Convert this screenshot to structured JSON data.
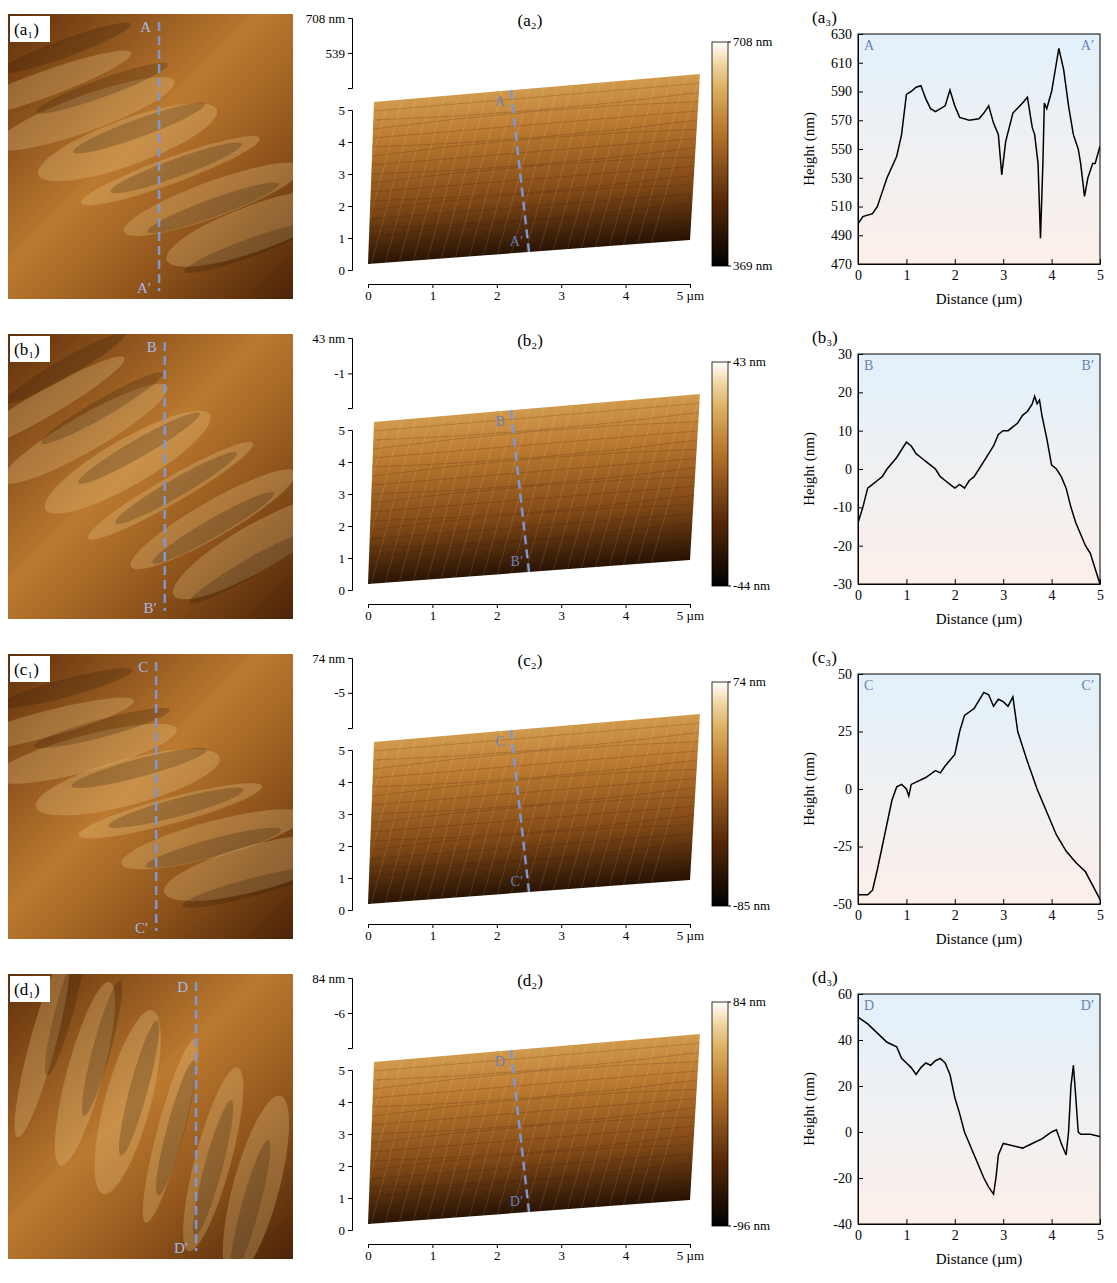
{
  "chart_data": [
    {
      "type": "line",
      "title": "(a₃)",
      "x_label": "Distance (µm)",
      "y_label": "Height (nm)",
      "annotations": [
        "A",
        "A′"
      ],
      "color": "#000000",
      "xlim": [
        0,
        5
      ],
      "xticks": [
        0,
        1,
        2,
        3,
        4,
        5
      ],
      "ylim": [
        470,
        630
      ],
      "yticks": [
        470,
        490,
        510,
        530,
        550,
        570,
        590,
        610,
        630
      ],
      "x": [
        0,
        0.1,
        0.3,
        0.4,
        0.5,
        0.6,
        0.8,
        0.9,
        1.0,
        1.1,
        1.2,
        1.3,
        1.4,
        1.5,
        1.6,
        1.8,
        1.9,
        2.0,
        2.1,
        2.3,
        2.5,
        2.6,
        2.7,
        2.8,
        2.9,
        2.97,
        3.05,
        3.2,
        3.4,
        3.5,
        3.6,
        3.65,
        3.72,
        3.77,
        3.82,
        3.85,
        3.9,
        4.0,
        4.1,
        4.15,
        4.25,
        4.35,
        4.45,
        4.55,
        4.6,
        4.68,
        4.75,
        4.85,
        4.9,
        5.0
      ],
      "values": [
        498,
        503,
        505,
        510,
        520,
        530,
        545,
        560,
        588,
        590,
        593,
        594,
        585,
        578,
        576,
        580,
        591,
        580,
        572,
        570,
        571,
        575,
        580,
        568,
        560,
        532,
        555,
        575,
        582,
        586,
        565,
        560,
        540,
        488,
        540,
        582,
        578,
        590,
        610,
        620,
        605,
        580,
        560,
        550,
        540,
        517,
        530,
        540,
        540,
        552
      ]
    },
    {
      "type": "line",
      "title": "(b₃)",
      "x_label": "Distance (µm)",
      "y_label": "Height (nm)",
      "annotations": [
        "B",
        "B′"
      ],
      "color": "#000000",
      "xlim": [
        0,
        5
      ],
      "xticks": [
        0,
        1,
        2,
        3,
        4,
        5
      ],
      "ylim": [
        -30,
        30
      ],
      "yticks": [
        -30,
        -20,
        -10,
        0,
        10,
        20,
        30
      ],
      "x": [
        0,
        0.1,
        0.2,
        0.3,
        0.4,
        0.5,
        0.6,
        0.8,
        1.0,
        1.1,
        1.2,
        1.3,
        1.4,
        1.5,
        1.6,
        1.7,
        1.8,
        1.9,
        2.0,
        2.1,
        2.2,
        2.3,
        2.4,
        2.5,
        2.6,
        2.7,
        2.8,
        2.9,
        3.0,
        3.1,
        3.2,
        3.3,
        3.4,
        3.5,
        3.6,
        3.65,
        3.7,
        3.75,
        3.8,
        3.9,
        4.0,
        4.1,
        4.2,
        4.3,
        4.4,
        4.5,
        4.6,
        4.7,
        4.8,
        4.9,
        5.0
      ],
      "values": [
        -14,
        -10,
        -5,
        -4,
        -3,
        -2,
        0,
        3,
        7,
        6,
        4,
        3,
        2,
        1,
        0,
        -2,
        -3,
        -4,
        -5,
        -4,
        -5,
        -3,
        -2,
        0,
        2,
        4,
        6,
        9,
        10,
        10,
        11,
        12,
        14,
        15,
        17,
        19,
        17,
        18,
        14,
        8,
        1,
        0,
        -2,
        -5,
        -10,
        -14,
        -17,
        -20,
        -22,
        -26,
        -30
      ]
    },
    {
      "type": "line",
      "title": "(c₃)",
      "x_label": "Distance (µm)",
      "y_label": "Height (nm)",
      "annotations": [
        "C",
        "C′"
      ],
      "color": "#000000",
      "xlim": [
        0,
        5
      ],
      "xticks": [
        0,
        1,
        2,
        3,
        4,
        5
      ],
      "ylim": [
        -50,
        50
      ],
      "yticks": [
        -50,
        -25,
        0,
        25,
        50
      ],
      "x": [
        0,
        0.2,
        0.3,
        0.4,
        0.5,
        0.6,
        0.7,
        0.8,
        0.9,
        1.0,
        1.05,
        1.1,
        1.2,
        1.4,
        1.6,
        1.7,
        1.8,
        2.0,
        2.1,
        2.2,
        2.4,
        2.6,
        2.7,
        2.8,
        2.9,
        3.0,
        3.1,
        3.2,
        3.3,
        3.5,
        3.7,
        3.9,
        4.1,
        4.3,
        4.5,
        4.7,
        4.9,
        5.0
      ],
      "values": [
        -46,
        -46,
        -44,
        -35,
        -25,
        -15,
        -5,
        1,
        2,
        0,
        -3,
        2,
        3,
        5,
        8,
        7,
        10,
        15,
        25,
        32,
        35,
        42,
        41,
        36,
        39,
        38,
        36,
        40,
        25,
        12,
        0,
        -10,
        -20,
        -27,
        -32,
        -36,
        -44,
        -48
      ]
    },
    {
      "type": "line",
      "title": "(d₃)",
      "x_label": "Distance (µm)",
      "y_label": "Height (nm)",
      "annotations": [
        "D",
        "D′"
      ],
      "color": "#000000",
      "xlim": [
        0,
        5
      ],
      "xticks": [
        0,
        1,
        2,
        3,
        4,
        5
      ],
      "ylim": [
        -40,
        60
      ],
      "yticks": [
        -40,
        -20,
        0,
        20,
        40,
        60
      ],
      "x": [
        0,
        0.2,
        0.4,
        0.6,
        0.8,
        0.9,
        1.0,
        1.1,
        1.2,
        1.3,
        1.4,
        1.5,
        1.6,
        1.7,
        1.8,
        1.9,
        2.0,
        2.1,
        2.2,
        2.3,
        2.4,
        2.5,
        2.6,
        2.7,
        2.8,
        2.85,
        2.9,
        3.0,
        3.2,
        3.4,
        3.6,
        3.8,
        4.0,
        4.1,
        4.2,
        4.3,
        4.35,
        4.4,
        4.45,
        4.5,
        4.55,
        4.6,
        4.8,
        5.0
      ],
      "values": [
        50,
        47,
        43,
        39,
        37,
        32,
        30,
        28,
        25,
        28,
        30,
        29,
        31,
        32,
        30,
        25,
        15,
        8,
        0,
        -5,
        -10,
        -15,
        -20,
        -24,
        -27,
        -20,
        -10,
        -5,
        -6,
        -7,
        -5,
        -3,
        0,
        1,
        -5,
        -10,
        0,
        20,
        29,
        15,
        0,
        -1,
        -1,
        -2
      ]
    }
  ],
  "image_panels": [
    {
      "label": "(a₁)",
      "line_labels": [
        "A",
        "A′"
      ]
    },
    {
      "label": "(b₁)",
      "line_labels": [
        "B",
        "B′"
      ]
    },
    {
      "label": "(c₁)",
      "line_labels": [
        "C",
        "C′"
      ]
    },
    {
      "label": "(d₁)",
      "line_labels": [
        "D",
        "D′"
      ]
    }
  ],
  "surface_panels": [
    {
      "label": "(a₂)",
      "line_labels": [
        "A",
        "A′"
      ],
      "xlim": [
        0,
        5
      ],
      "xticks": [
        0,
        1,
        2,
        3,
        4,
        {
          "value": 5,
          "label": "5 µm"
        }
      ],
      "ylim": [
        0,
        5
      ],
      "yticks": [
        0,
        1,
        2,
        3,
        4,
        5
      ],
      "zlim": [
        369,
        708
      ],
      "zticks": [
        {
          "value": 708,
          "label": "708 nm"
        },
        539
      ],
      "colorbar_ticks": [
        {
          "value": 708,
          "label": "708 nm"
        },
        {
          "value": 369,
          "label": "369 nm"
        }
      ]
    },
    {
      "label": "(b₂)",
      "line_labels": [
        "B",
        "B′"
      ],
      "xlim": [
        0,
        5
      ],
      "xticks": [
        0,
        1,
        2,
        3,
        4,
        {
          "value": 5,
          "label": "5 µm"
        }
      ],
      "ylim": [
        0,
        5
      ],
      "yticks": [
        0,
        1,
        2,
        3,
        4,
        5
      ],
      "zlim": [
        -44,
        43
      ],
      "zticks": [
        {
          "value": 43,
          "label": "43 nm"
        },
        -1
      ],
      "colorbar_ticks": [
        {
          "value": 43,
          "label": "43 nm"
        },
        {
          "value": -44,
          "label": "-44 nm"
        }
      ]
    },
    {
      "label": "(c₂)",
      "line_labels": [
        "C",
        "C′"
      ],
      "xlim": [
        0,
        5
      ],
      "xticks": [
        0,
        1,
        2,
        3,
        4,
        {
          "value": 5,
          "label": "5 µm"
        }
      ],
      "ylim": [
        0,
        5
      ],
      "yticks": [
        0,
        1,
        2,
        3,
        4,
        5
      ],
      "zlim": [
        -85,
        74
      ],
      "zticks": [
        {
          "value": 74,
          "label": "74 nm"
        },
        -5
      ],
      "colorbar_ticks": [
        {
          "value": 74,
          "label": "74 nm"
        },
        {
          "value": -85,
          "label": "-85 nm"
        }
      ]
    },
    {
      "label": "(d₂)",
      "line_labels": [
        "D",
        "D′"
      ],
      "xlim": [
        0,
        5
      ],
      "xticks": [
        0,
        1,
        2,
        3,
        4,
        {
          "value": 5,
          "label": "5 µm"
        }
      ],
      "ylim": [
        0,
        5
      ],
      "yticks": [
        0,
        1,
        2,
        3,
        4,
        5
      ],
      "zlim": [
        -96,
        84
      ],
      "zticks": [
        {
          "value": 84,
          "label": "84 nm"
        },
        -6
      ],
      "colorbar_ticks": [
        {
          "value": 84,
          "label": "84 nm"
        },
        {
          "value": -96,
          "label": "-96 nm"
        }
      ]
    }
  ]
}
